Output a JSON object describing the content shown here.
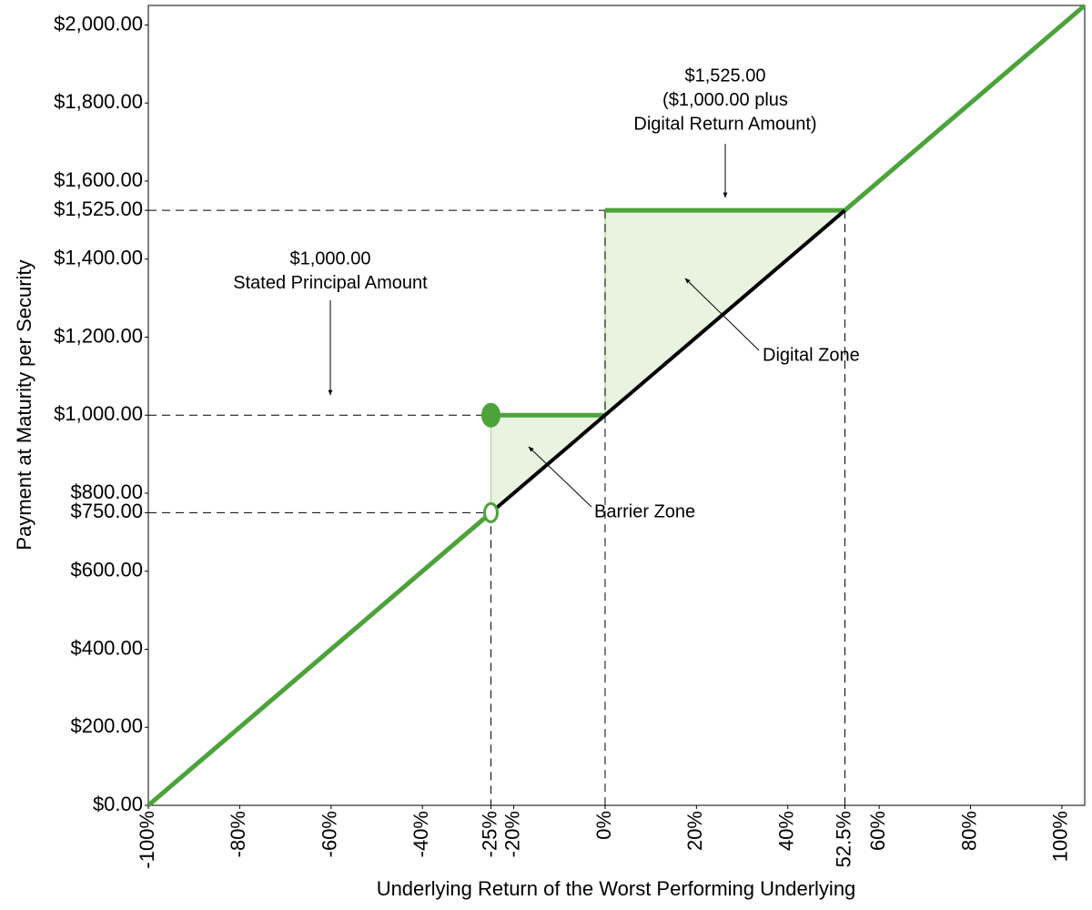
{
  "chart_data": {
    "type": "line",
    "x_label": "Underlying Return of the Worst Performing Underlying",
    "y_label": "Payment at Maturity per Security",
    "xlim": [
      -100,
      105
    ],
    "ylim": [
      0,
      2050
    ],
    "xticks": [
      {
        "value": -100,
        "label": "-100%"
      },
      {
        "value": -80,
        "label": "-80%"
      },
      {
        "value": -60,
        "label": "-60%"
      },
      {
        "value": -40,
        "label": "-40%"
      },
      {
        "value": -25,
        "label": "-25%"
      },
      {
        "value": -20,
        "label": "-20%"
      },
      {
        "value": 0,
        "label": "0%"
      },
      {
        "value": 20,
        "label": "20%"
      },
      {
        "value": 40,
        "label": "40%"
      },
      {
        "value": 52.5,
        "label": "52.5%"
      },
      {
        "value": 60,
        "label": "60%"
      },
      {
        "value": 80,
        "label": "80%"
      },
      {
        "value": 100,
        "label": "100%"
      }
    ],
    "yticks": [
      {
        "value": 0,
        "label": "$0.00"
      },
      {
        "value": 200,
        "label": "$200.00"
      },
      {
        "value": 400,
        "label": "$400.00"
      },
      {
        "value": 600,
        "label": "$600.00"
      },
      {
        "value": 750,
        "label": "$750.00"
      },
      {
        "value": 800,
        "label": "$800.00"
      },
      {
        "value": 1000,
        "label": "$1,000.00"
      },
      {
        "value": 1200,
        "label": "$1,200.00"
      },
      {
        "value": 1400,
        "label": "$1,400.00"
      },
      {
        "value": 1525,
        "label": "$1,525.00"
      },
      {
        "value": 1600,
        "label": "$1,600.00"
      },
      {
        "value": 1800,
        "label": "$1,800.00"
      },
      {
        "value": 2000,
        "label": "$2,000.00"
      }
    ],
    "area_color": "#e9f3e0",
    "area_edge_color": "#b9dba5",
    "areas": [
      {
        "x": [
          -25,
          -25,
          0
        ],
        "values": [
          750,
          1000,
          1000
        ]
      },
      {
        "x": [
          0,
          0,
          52.5
        ],
        "values": [
          1000,
          1525,
          1525
        ]
      }
    ],
    "series": [
      {
        "color": "#4ca33a",
        "width": 5,
        "x": [
          -100,
          -25,
          null,
          -25,
          0,
          null,
          0,
          52.5,
          105
        ],
        "values": [
          0,
          750,
          null,
          1000,
          1000,
          null,
          1525,
          1525,
          2050
        ]
      },
      {
        "color": "#000000",
        "width": 4,
        "x": [
          -25,
          52.5
        ],
        "values": [
          750,
          1525
        ]
      }
    ],
    "marker_color": "#4ca33a",
    "markers": [
      {
        "x": -25,
        "y": 1000,
        "filled": true
      },
      {
        "x": -25,
        "y": 750,
        "filled": false
      }
    ],
    "h_guides": [
      {
        "x": -25,
        "y": 750
      },
      {
        "x": -25,
        "y": 1000
      },
      {
        "x": 0,
        "y": 1525
      }
    ],
    "v_guides": [
      {
        "x": -25,
        "y": 750
      },
      {
        "x": 0,
        "y": 1525
      },
      {
        "x": 52.5,
        "y": 1525
      }
    ],
    "annotations": [
      {
        "lines": [
          "$1,525.00",
          "($1,000.00 plus",
          "Digital Return Amount)"
        ]
      },
      {
        "lines": [
          "$1,000.00",
          "Stated Principal Amount"
        ]
      },
      {
        "lines": [
          "Digital Zone"
        ]
      },
      {
        "lines": [
          "Barrier Zone"
        ]
      }
    ]
  }
}
